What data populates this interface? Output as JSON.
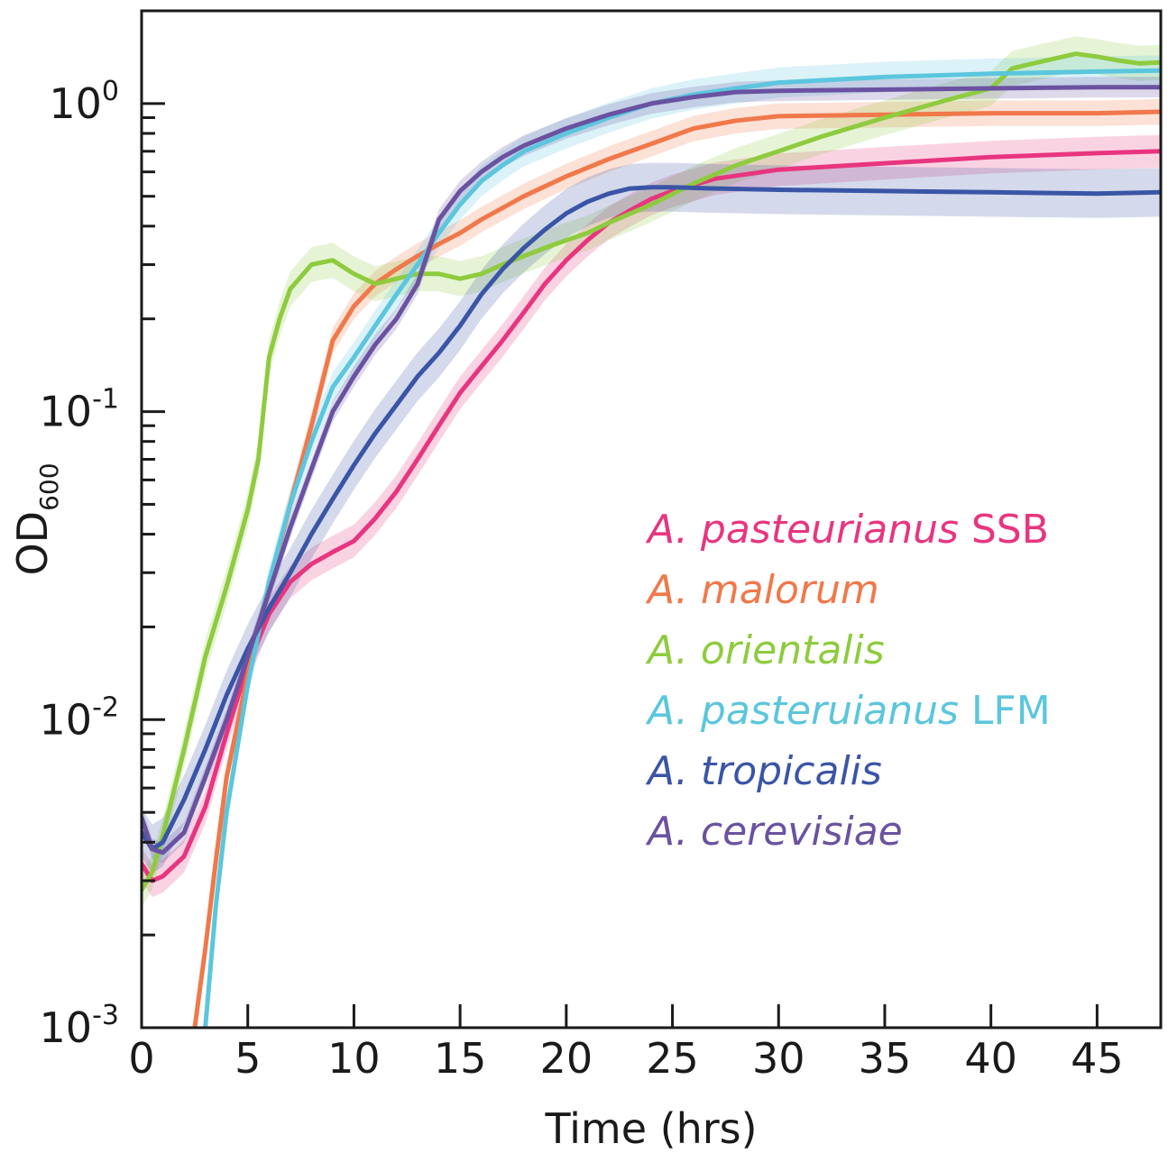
{
  "chart_data": {
    "type": "line",
    "xlabel": "Time (hrs)",
    "ylabel_base": "OD",
    "ylabel_sub": "600",
    "x_scale": "linear",
    "y_scale": "log",
    "xlim": [
      0,
      48
    ],
    "ylim": [
      0.001,
      2.0
    ],
    "x_ticks": [
      0,
      5,
      10,
      15,
      20,
      25,
      30,
      35,
      40,
      45
    ],
    "x_tick_labels": [
      "0",
      "5",
      "10",
      "15",
      "20",
      "25",
      "30",
      "35",
      "40",
      "45"
    ],
    "y_ticks": [
      {
        "value": 0.001,
        "base": "10",
        "exp": "-3"
      },
      {
        "value": 0.01,
        "base": "10",
        "exp": "-2"
      },
      {
        "value": 0.1,
        "base": "10",
        "exp": "-1"
      },
      {
        "value": 1,
        "base": "10",
        "exp": "0"
      }
    ],
    "grid": false,
    "legend_position": "right-middle",
    "series": [
      {
        "name_italic": "A. pasteurianus",
        "name_suffix": " SSB",
        "color": "#e8357f",
        "band_rel": 0.13,
        "points": [
          [
            0,
            0.0034
          ],
          [
            0.5,
            0.003
          ],
          [
            1,
            0.0031
          ],
          [
            2,
            0.0036
          ],
          [
            3,
            0.0052
          ],
          [
            4,
            0.009
          ],
          [
            5,
            0.015
          ],
          [
            6,
            0.022
          ],
          [
            7,
            0.028
          ],
          [
            8,
            0.032
          ],
          [
            9,
            0.035
          ],
          [
            10,
            0.038
          ],
          [
            11,
            0.045
          ],
          [
            12,
            0.055
          ],
          [
            13,
            0.07
          ],
          [
            14,
            0.09
          ],
          [
            15,
            0.115
          ],
          [
            16,
            0.14
          ],
          [
            17,
            0.17
          ],
          [
            18,
            0.21
          ],
          [
            19,
            0.26
          ],
          [
            20,
            0.31
          ],
          [
            21,
            0.36
          ],
          [
            22,
            0.41
          ],
          [
            23,
            0.45
          ],
          [
            24,
            0.49
          ],
          [
            25,
            0.52
          ],
          [
            27,
            0.57
          ],
          [
            30,
            0.61
          ],
          [
            35,
            0.64
          ],
          [
            40,
            0.67
          ],
          [
            45,
            0.69
          ],
          [
            48,
            0.7
          ]
        ]
      },
      {
        "name_italic": "A. malorum",
        "name_suffix": "",
        "color": "#f0784a",
        "band_rel": 0.1,
        "points": [
          [
            2.5,
            0.001
          ],
          [
            3,
            0.0018
          ],
          [
            3.5,
            0.0035
          ],
          [
            4,
            0.0065
          ],
          [
            5,
            0.014
          ],
          [
            6,
            0.027
          ],
          [
            7,
            0.05
          ],
          [
            8,
            0.09
          ],
          [
            9,
            0.17
          ],
          [
            10,
            0.22
          ],
          [
            11,
            0.26
          ],
          [
            12,
            0.29
          ],
          [
            13,
            0.32
          ],
          [
            14,
            0.35
          ],
          [
            15,
            0.38
          ],
          [
            16,
            0.42
          ],
          [
            18,
            0.5
          ],
          [
            20,
            0.58
          ],
          [
            22,
            0.66
          ],
          [
            24,
            0.74
          ],
          [
            26,
            0.83
          ],
          [
            28,
            0.88
          ],
          [
            30,
            0.91
          ],
          [
            35,
            0.92
          ],
          [
            40,
            0.93
          ],
          [
            45,
            0.93
          ],
          [
            48,
            0.94
          ]
        ]
      },
      {
        "name_italic": "A. orientalis",
        "name_suffix": "",
        "color": "#8ecb3e",
        "band_rel": 0.14,
        "points": [
          [
            0,
            0.0028
          ],
          [
            0.5,
            0.0032
          ],
          [
            1,
            0.0042
          ],
          [
            2,
            0.008
          ],
          [
            3,
            0.016
          ],
          [
            4,
            0.027
          ],
          [
            5,
            0.048
          ],
          [
            5.5,
            0.07
          ],
          [
            6,
            0.15
          ],
          [
            6.5,
            0.2
          ],
          [
            7,
            0.25
          ],
          [
            8,
            0.3
          ],
          [
            9,
            0.31
          ],
          [
            10,
            0.28
          ],
          [
            11,
            0.26
          ],
          [
            12,
            0.27
          ],
          [
            13,
            0.28
          ],
          [
            14,
            0.28
          ],
          [
            15,
            0.27
          ],
          [
            16,
            0.28
          ],
          [
            17,
            0.3
          ],
          [
            18,
            0.32
          ],
          [
            19,
            0.34
          ],
          [
            20,
            0.36
          ],
          [
            21,
            0.38
          ],
          [
            22,
            0.41
          ],
          [
            24,
            0.47
          ],
          [
            26,
            0.55
          ],
          [
            28,
            0.63
          ],
          [
            30,
            0.7
          ],
          [
            32,
            0.78
          ],
          [
            35,
            0.9
          ],
          [
            38,
            1.03
          ],
          [
            40,
            1.12
          ],
          [
            41,
            1.3
          ],
          [
            42,
            1.35
          ],
          [
            43,
            1.4
          ],
          [
            44,
            1.45
          ],
          [
            45,
            1.42
          ],
          [
            46,
            1.38
          ],
          [
            47,
            1.35
          ],
          [
            48,
            1.36
          ]
        ]
      },
      {
        "name_italic": "A. pasteruianus",
        "name_suffix": " LFM",
        "color": "#5bc6dd",
        "band_rel": 0.12,
        "points": [
          [
            3,
            0.001
          ],
          [
            3.5,
            0.0025
          ],
          [
            4,
            0.005
          ],
          [
            5,
            0.013
          ],
          [
            6,
            0.028
          ],
          [
            7,
            0.05
          ],
          [
            8,
            0.08
          ],
          [
            9,
            0.12
          ],
          [
            10,
            0.15
          ],
          [
            11,
            0.19
          ],
          [
            12,
            0.24
          ],
          [
            13,
            0.3
          ],
          [
            14,
            0.38
          ],
          [
            15,
            0.47
          ],
          [
            16,
            0.56
          ],
          [
            17,
            0.63
          ],
          [
            18,
            0.7
          ],
          [
            20,
            0.8
          ],
          [
            22,
            0.9
          ],
          [
            24,
            1.0
          ],
          [
            26,
            1.07
          ],
          [
            28,
            1.12
          ],
          [
            30,
            1.17
          ],
          [
            35,
            1.22
          ],
          [
            40,
            1.25
          ],
          [
            45,
            1.27
          ],
          [
            48,
            1.28
          ]
        ]
      },
      {
        "name_italic": "A. tropicalis",
        "name_suffix": "",
        "color": "#3a55a6",
        "band_rel": 0.2,
        "points": [
          [
            0,
            0.0043
          ],
          [
            0.5,
            0.0038
          ],
          [
            1,
            0.004
          ],
          [
            2,
            0.0055
          ],
          [
            3,
            0.008
          ],
          [
            4,
            0.012
          ],
          [
            5,
            0.017
          ],
          [
            6,
            0.023
          ],
          [
            7,
            0.03
          ],
          [
            8,
            0.04
          ],
          [
            9,
            0.052
          ],
          [
            10,
            0.067
          ],
          [
            11,
            0.085
          ],
          [
            12,
            0.105
          ],
          [
            13,
            0.13
          ],
          [
            14,
            0.155
          ],
          [
            15,
            0.19
          ],
          [
            16,
            0.24
          ],
          [
            17,
            0.29
          ],
          [
            18,
            0.34
          ],
          [
            19,
            0.39
          ],
          [
            20,
            0.44
          ],
          [
            21,
            0.48
          ],
          [
            22,
            0.51
          ],
          [
            23,
            0.53
          ],
          [
            24,
            0.535
          ],
          [
            25,
            0.535
          ],
          [
            27,
            0.53
          ],
          [
            30,
            0.525
          ],
          [
            35,
            0.52
          ],
          [
            40,
            0.515
          ],
          [
            45,
            0.51
          ],
          [
            48,
            0.515
          ]
        ]
      },
      {
        "name_italic": "A. cerevisiae",
        "name_suffix": "",
        "color": "#6a52a1",
        "band_rel": 0.08,
        "points": [
          [
            0,
            0.0048
          ],
          [
            0.5,
            0.0038
          ],
          [
            1,
            0.0037
          ],
          [
            2,
            0.0043
          ],
          [
            3,
            0.0065
          ],
          [
            4,
            0.01
          ],
          [
            5,
            0.016
          ],
          [
            6,
            0.026
          ],
          [
            7,
            0.042
          ],
          [
            8,
            0.065
          ],
          [
            9,
            0.1
          ],
          [
            10,
            0.13
          ],
          [
            11,
            0.165
          ],
          [
            12,
            0.2
          ],
          [
            13,
            0.26
          ],
          [
            14,
            0.42
          ],
          [
            15,
            0.52
          ],
          [
            16,
            0.6
          ],
          [
            17,
            0.67
          ],
          [
            18,
            0.73
          ],
          [
            20,
            0.83
          ],
          [
            22,
            0.92
          ],
          [
            24,
            1.0
          ],
          [
            26,
            1.05
          ],
          [
            28,
            1.09
          ],
          [
            30,
            1.1
          ],
          [
            35,
            1.11
          ],
          [
            40,
            1.12
          ],
          [
            45,
            1.13
          ],
          [
            48,
            1.13
          ]
        ]
      }
    ]
  }
}
